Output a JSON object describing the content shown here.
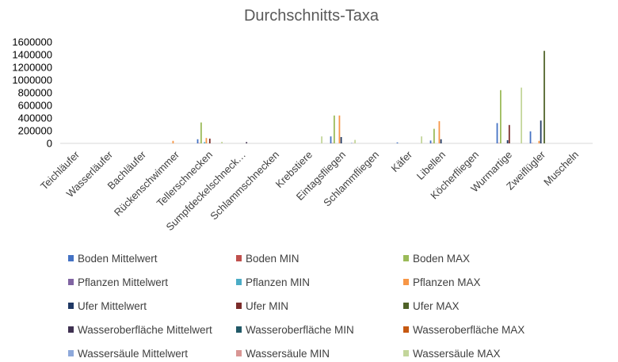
{
  "chart_data": {
    "type": "bar",
    "title": "Durchschnitts-Taxa",
    "xlabel": "",
    "ylabel": "",
    "ylim": [
      0,
      1600000
    ],
    "yticks": [
      0,
      200000,
      400000,
      600000,
      800000,
      1000000,
      1200000,
      1400000,
      1600000
    ],
    "grid": false,
    "legend_position": "bottom",
    "categories": [
      "Teichläufer",
      "Wasserläufer",
      "Bachläufer",
      "Rückenschwimmer",
      "Tellerschnecken",
      "Sumpfdeckelschneck…",
      "Schlammschnecken",
      "Krebstiere",
      "Eintagsfliegen",
      "Schlammfliegen",
      "Käfer",
      "Libellen",
      "Köcherfliegen",
      "Wurmartige",
      "Zweiflügler",
      "Muscheln"
    ],
    "series": [
      {
        "name": "Boden Mittelwert",
        "color": "#4472C4",
        "values": [
          0,
          0,
          0,
          0,
          65000,
          0,
          0,
          0,
          110000,
          0,
          15000,
          45000,
          0,
          320000,
          190000,
          0
        ]
      },
      {
        "name": "Boden MIN",
        "color": "#C0504D",
        "values": [
          0,
          0,
          0,
          0,
          5000,
          0,
          0,
          0,
          5000,
          0,
          0,
          5000,
          0,
          5000,
          5000,
          0
        ]
      },
      {
        "name": "Boden MAX",
        "color": "#9BBB59",
        "values": [
          0,
          0,
          0,
          0,
          330000,
          0,
          0,
          0,
          440000,
          0,
          0,
          230000,
          0,
          840000,
          0,
          0
        ]
      },
      {
        "name": "Pflanzen Mittelwert",
        "color": "#8064A2",
        "values": [
          0,
          0,
          0,
          0,
          0,
          0,
          0,
          0,
          0,
          0,
          0,
          0,
          0,
          0,
          0,
          0
        ]
      },
      {
        "name": "Pflanzen MIN",
        "color": "#4BACC6",
        "values": [
          0,
          0,
          0,
          0,
          20000,
          0,
          0,
          0,
          0,
          0,
          0,
          0,
          0,
          0,
          0,
          0
        ]
      },
      {
        "name": "Pflanzen MAX",
        "color": "#F79646",
        "values": [
          0,
          0,
          0,
          40000,
          85000,
          0,
          0,
          0,
          440000,
          0,
          0,
          350000,
          0,
          0,
          40000,
          0
        ]
      },
      {
        "name": "Ufer Mittelwert",
        "color": "#1F3864",
        "values": [
          0,
          0,
          0,
          0,
          0,
          0,
          0,
          0,
          100000,
          0,
          0,
          65000,
          0,
          50000,
          360000,
          0
        ]
      },
      {
        "name": "Ufer MIN",
        "color": "#7B2C2A",
        "values": [
          0,
          0,
          0,
          0,
          75000,
          0,
          0,
          0,
          0,
          0,
          0,
          0,
          0,
          290000,
          0,
          0
        ]
      },
      {
        "name": "Ufer MAX",
        "color": "#4F6228",
        "values": [
          0,
          0,
          0,
          0,
          0,
          0,
          0,
          0,
          0,
          0,
          0,
          0,
          0,
          0,
          1460000,
          0
        ]
      },
      {
        "name": "Wasseroberfläche Mittelwert",
        "color": "#3F3151",
        "values": [
          0,
          0,
          0,
          0,
          0,
          20000,
          0,
          0,
          0,
          0,
          0,
          0,
          0,
          0,
          0,
          0
        ]
      },
      {
        "name": "Wasseroberfläche MIN",
        "color": "#215967",
        "values": [
          0,
          0,
          0,
          0,
          0,
          0,
          0,
          0,
          0,
          0,
          0,
          0,
          0,
          0,
          0,
          0
        ]
      },
      {
        "name": "Wasseroberfläche MAX",
        "color": "#C65911",
        "values": [
          0,
          0,
          0,
          0,
          0,
          0,
          0,
          0,
          0,
          0,
          0,
          0,
          0,
          0,
          0,
          0
        ]
      },
      {
        "name": "Wassersäule Mittelwert",
        "color": "#8EA9DB",
        "values": [
          0,
          0,
          0,
          0,
          0,
          0,
          0,
          0,
          10000,
          0,
          0,
          0,
          0,
          0,
          0,
          0
        ]
      },
      {
        "name": "Wassersäule MIN",
        "color": "#D99694",
        "values": [
          0,
          0,
          0,
          0,
          0,
          0,
          0,
          0,
          5000,
          0,
          0,
          0,
          0,
          0,
          0,
          0
        ]
      },
      {
        "name": "Wassersäule MAX",
        "color": "#C3D69B",
        "values": [
          0,
          0,
          0,
          0,
          25000,
          0,
          0,
          110000,
          55000,
          0,
          110000,
          0,
          0,
          880000,
          0,
          0
        ]
      }
    ]
  }
}
